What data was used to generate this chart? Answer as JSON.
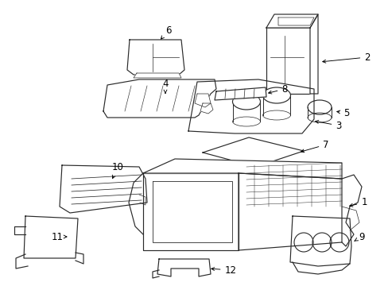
{
  "bg_color": "#ffffff",
  "line_color": "#2a2a2a",
  "figsize": [
    4.89,
    3.6
  ],
  "dpi": 100,
  "xlim": [
    0,
    489
  ],
  "ylim": [
    0,
    360
  ]
}
